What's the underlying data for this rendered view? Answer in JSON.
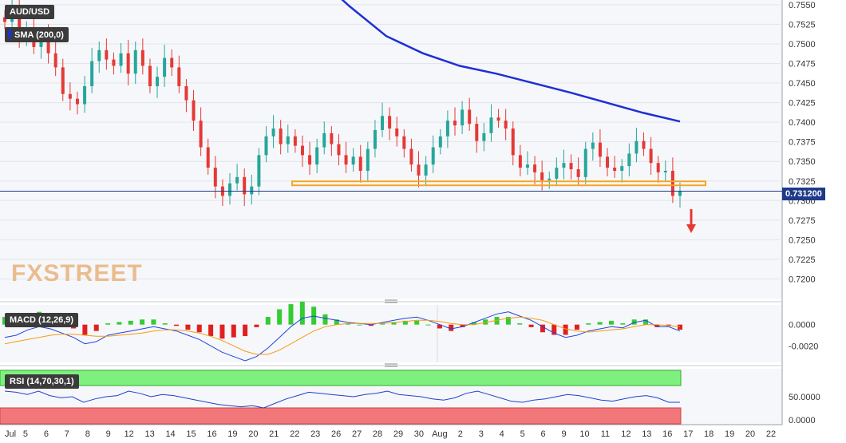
{
  "chart_data": [
    {
      "panel": "price",
      "type": "candlestick",
      "title": "AUD/USD",
      "indicator": "SMA (200,0)",
      "current_price_label": "0.731200",
      "yticks": [
        "0.7550",
        "0.7525",
        "0.7500",
        "0.7475",
        "0.7450",
        "0.7425",
        "0.7400",
        "0.7375",
        "0.7350",
        "0.7325",
        "0.7300",
        "0.7275",
        "0.7250",
        "0.7225",
        "0.7200"
      ],
      "ylim": [
        0.7175,
        0.7556
      ],
      "close_series": [
        0.7528,
        0.7545,
        0.7508,
        0.7518,
        0.7496,
        0.7512,
        0.7488,
        0.747,
        0.7436,
        0.743,
        0.7423,
        0.7446,
        0.7478,
        0.7492,
        0.748,
        0.7472,
        0.7488,
        0.7462,
        0.7492,
        0.7472,
        0.7446,
        0.7458,
        0.7482,
        0.747,
        0.7446,
        0.7428,
        0.7402,
        0.7368,
        0.7342,
        0.7318,
        0.7306,
        0.7322,
        0.733,
        0.7308,
        0.7318,
        0.7358,
        0.7382,
        0.7392,
        0.7372,
        0.7382,
        0.737,
        0.7358,
        0.7346,
        0.7368,
        0.7386,
        0.7372,
        0.7358,
        0.7346,
        0.7356,
        0.7338,
        0.7366,
        0.739,
        0.7408,
        0.7392,
        0.7382,
        0.7366,
        0.7346,
        0.7332,
        0.7346,
        0.7368,
        0.7382,
        0.7402,
        0.7396,
        0.7416,
        0.7398,
        0.7376,
        0.7386,
        0.7406,
        0.7402,
        0.7392,
        0.7358,
        0.7342,
        0.7346,
        0.7336,
        0.7326,
        0.7328,
        0.7342,
        0.7348,
        0.734,
        0.733,
        0.7366,
        0.7374,
        0.7356,
        0.7342,
        0.7338,
        0.7344,
        0.736,
        0.7376,
        0.7366,
        0.7348,
        0.7336,
        0.7338,
        0.7306,
        0.7312
      ],
      "sma200": [
        0.7668,
        0.763,
        0.759,
        0.7548,
        0.751,
        0.7488,
        0.7472,
        0.7462,
        0.745,
        0.7438,
        0.7425,
        0.7412,
        0.7401
      ],
      "support_level": 0.7322,
      "arrow": "down"
    },
    {
      "panel": "macd",
      "type": "histogram+line",
      "label": "MACD (12,26,9)",
      "yticks": [
        "0.0000",
        "-0.0020"
      ],
      "ylim": [
        -0.0034,
        0.0017
      ],
      "macd": [
        -0.0012,
        -0.001,
        -0.0005,
        -0.0002,
        -0.0004,
        -0.0008,
        -0.0012,
        -0.0018,
        -0.0016,
        -0.001,
        -0.0008,
        -0.0006,
        -0.0004,
        -0.0002,
        -0.0004,
        -0.0006,
        -0.001,
        -0.0014,
        -0.002,
        -0.0026,
        -0.003,
        -0.0034,
        -0.003,
        -0.0022,
        -0.0012,
        -0.0002,
        0.0006,
        0.0008,
        0.0006,
        0.0004,
        0.0002,
        0.0001,
        0.0,
        0.0002,
        0.0004,
        0.0006,
        0.0007,
        0.0004,
        0.0,
        -0.0004,
        -0.0002,
        0.0002,
        0.0006,
        0.001,
        0.0012,
        0.0008,
        0.0004,
        -0.0002,
        -0.0008,
        -0.0012,
        -0.001,
        -0.0006,
        -0.0004,
        -0.0002,
        -0.0003,
        0.0002,
        0.0004,
        -0.0002,
        -0.0002,
        -0.0006
      ],
      "signal": [
        -0.0018,
        -0.0016,
        -0.0014,
        -0.0012,
        -0.001,
        -0.0009,
        -0.0009,
        -0.001,
        -0.0011,
        -0.0011,
        -0.001,
        -0.0009,
        -0.0008,
        -0.0006,
        -0.0005,
        -0.0005,
        -0.0006,
        -0.0008,
        -0.0011,
        -0.0015,
        -0.002,
        -0.0025,
        -0.0028,
        -0.0028,
        -0.0024,
        -0.0018,
        -0.0012,
        -0.0006,
        -0.0002,
        0.0,
        0.0001,
        0.0001,
        0.0001,
        0.0001,
        0.0002,
        0.0003,
        0.0004,
        0.0004,
        0.0003,
        0.0001,
        0.0,
        0.0,
        0.0002,
        0.0004,
        0.0006,
        0.0007,
        0.0006,
        0.0004,
        0.0,
        -0.0004,
        -0.0006,
        -0.0007,
        -0.0006,
        -0.0005,
        -0.0004,
        -0.0002,
        0.0,
        0.0,
        -0.0001,
        -0.0002
      ]
    },
    {
      "panel": "rsi",
      "type": "line",
      "label": "RSI (14,70,30,1)",
      "yticks": [
        "50.0000",
        "0.0000"
      ],
      "ylim": [
        0,
        100
      ],
      "overbought": 70,
      "oversold": 30,
      "rsi": [
        60,
        58,
        54,
        60,
        52,
        48,
        50,
        40,
        46,
        50,
        52,
        60,
        56,
        50,
        54,
        52,
        48,
        44,
        40,
        36,
        34,
        32,
        34,
        30,
        38,
        46,
        52,
        58,
        56,
        54,
        52,
        50,
        54,
        56,
        60,
        54,
        52,
        50,
        46,
        44,
        48,
        56,
        60,
        54,
        48,
        42,
        40,
        44,
        46,
        50,
        54,
        52,
        48,
        44,
        42,
        46,
        50,
        52,
        48,
        40,
        40
      ]
    }
  ],
  "x_axis": {
    "ticks": [
      "Jul",
      "5",
      "6",
      "7",
      "8",
      "9",
      "12",
      "13",
      "14",
      "15",
      "16",
      "19",
      "20",
      "21",
      "22",
      "23",
      "26",
      "27",
      "28",
      "29",
      "30",
      "Aug",
      "2",
      "3",
      "4",
      "5",
      "6",
      "9",
      "10",
      "11",
      "12",
      "13",
      "16",
      "17",
      "18",
      "19",
      "20",
      "22"
    ]
  },
  "watermark": "FXSTREET",
  "colors": {
    "bull": "#26a69a",
    "bear": "#e53935",
    "sma": "#1e2fd6",
    "support": "#f5a623",
    "current_line": "#1e3a8a",
    "arrow": "#e53935",
    "macd_pos": "#33cc33",
    "macd_neg": "#e02020",
    "macd_line": "#2244dd",
    "signal_line": "#f39c12",
    "rsi_upper": "#7ef07e",
    "rsi_lower": "#f2777a",
    "rsi_line": "#2040cc"
  }
}
